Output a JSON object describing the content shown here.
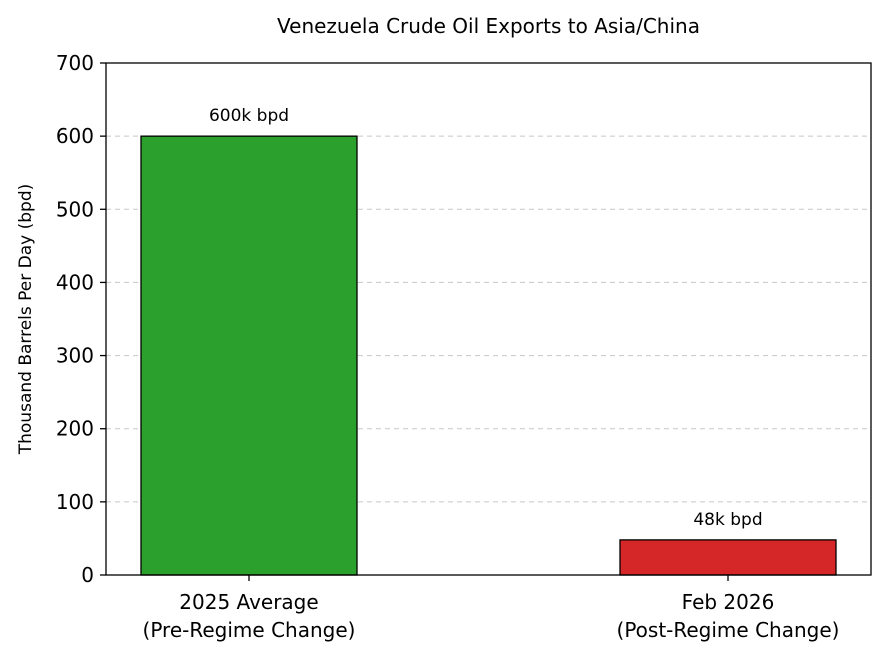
{
  "chart_data": {
    "type": "bar",
    "title": "Venezuela Crude Oil Exports to Asia/China",
    "xlabel": "",
    "ylabel": "Thousand Barrels Per Day (bpd)",
    "ylim": [
      0,
      700
    ],
    "yticks": [
      0,
      100,
      200,
      300,
      400,
      500,
      600,
      700
    ],
    "grid": "horizontal-dashed",
    "categories": [
      [
        "2025 Average",
        "(Pre-Regime Change)"
      ],
      [
        "Feb 2026",
        "(Post-Regime Change)"
      ]
    ],
    "values": [
      600,
      48
    ],
    "data_labels": [
      "600k bpd",
      "48k bpd"
    ],
    "colors": [
      "#2ca02c",
      "#d62728"
    ]
  }
}
